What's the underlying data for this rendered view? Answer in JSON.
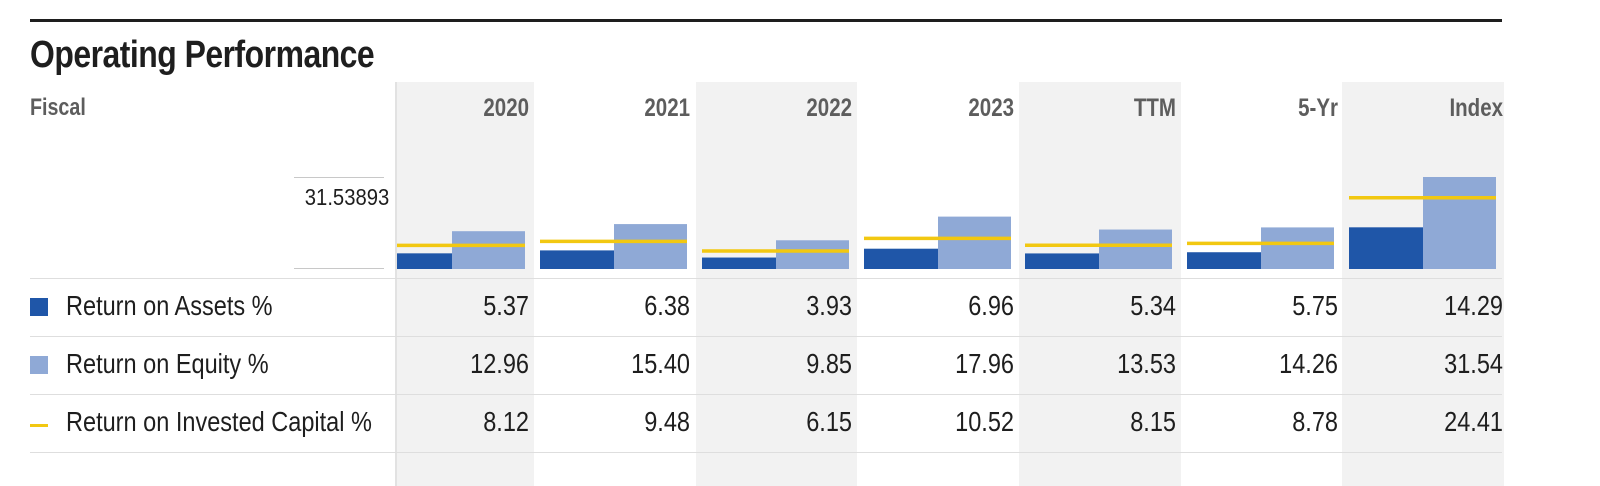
{
  "title": "Operating Performance",
  "fiscal_label": "Fiscal",
  "colors": {
    "roa": "#1f56a8",
    "roe": "#8fa9d6",
    "roic": "#f2c811"
  },
  "chart_data": {
    "type": "bar",
    "categories": [
      "2020",
      "2021",
      "2022",
      "2023",
      "TTM",
      "5-Yr",
      "Index"
    ],
    "y_max_label": "31.53893",
    "ylim": [
      0,
      31.53893
    ],
    "series": [
      {
        "name": "Return on Assets %",
        "kind": "bar",
        "color": "#1f56a8",
        "values": [
          5.37,
          6.38,
          3.93,
          6.96,
          5.34,
          5.75,
          14.29
        ],
        "labels": [
          "5.37",
          "6.38",
          "3.93",
          "6.96",
          "5.34",
          "5.75",
          "14.29"
        ]
      },
      {
        "name": "Return on Equity %",
        "kind": "bar",
        "color": "#8fa9d6",
        "values": [
          12.96,
          15.4,
          9.85,
          17.96,
          13.53,
          14.26,
          31.54
        ],
        "labels": [
          "12.96",
          "15.40",
          "9.85",
          "17.96",
          "13.53",
          "14.26",
          "31.54"
        ]
      },
      {
        "name": "Return on Invested Capital %",
        "kind": "line",
        "color": "#f2c811",
        "values": [
          8.12,
          9.48,
          6.15,
          10.52,
          8.15,
          8.78,
          24.41
        ],
        "labels": [
          "8.12",
          "9.48",
          "6.15",
          "10.52",
          "8.15",
          "8.78",
          "24.41"
        ]
      }
    ]
  }
}
